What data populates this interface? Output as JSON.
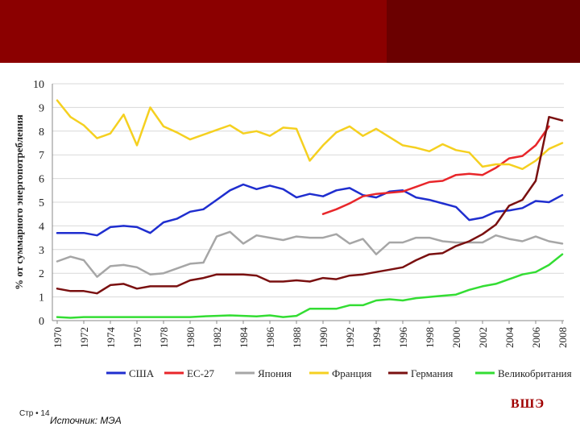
{
  "footer": {
    "page_label": "Стр • 14",
    "source": "Источник: МЭА"
  },
  "logo_text": "ВШЭ",
  "colors": {
    "banner": "#8b0000",
    "logo": "#a00000"
  },
  "chart_data": {
    "type": "line",
    "title": "",
    "xlabel": "",
    "ylabel": "% от суммарного энергопотребления",
    "ylim": [
      0,
      10
    ],
    "xlim": [
      1970,
      2008
    ],
    "yticks": [
      0,
      1,
      2,
      3,
      4,
      5,
      6,
      7,
      8,
      9,
      10
    ],
    "xticks": [
      1970,
      1972,
      1974,
      1976,
      1978,
      1980,
      1982,
      1984,
      1986,
      1988,
      1990,
      1992,
      1994,
      1996,
      1998,
      2000,
      2002,
      2004,
      2006,
      2008
    ],
    "legend_position": "bottom",
    "series": [
      {
        "name": "США",
        "color": "#1f2ecf",
        "x": [
          1970,
          1971,
          1972,
          1973,
          1974,
          1975,
          1976,
          1977,
          1978,
          1979,
          1980,
          1981,
          1982,
          1983,
          1984,
          1985,
          1986,
          1987,
          1988,
          1989,
          1990,
          1991,
          1992,
          1993,
          1994,
          1995,
          1996,
          1997,
          1998,
          1999,
          2000,
          2001,
          2002,
          2003,
          2004,
          2005,
          2006,
          2007,
          2008
        ],
        "y": [
          3.7,
          3.7,
          3.7,
          3.6,
          3.95,
          4.0,
          3.95,
          3.7,
          4.15,
          4.3,
          4.6,
          4.7,
          5.1,
          5.5,
          5.75,
          5.55,
          5.7,
          5.55,
          5.2,
          5.35,
          5.25,
          5.5,
          5.6,
          5.3,
          5.2,
          5.45,
          5.5,
          5.2,
          5.1,
          4.95,
          4.8,
          4.25,
          4.35,
          4.6,
          4.65,
          4.75,
          5.05,
          5.0,
          5.3
        ]
      },
      {
        "name": "ЕС-27",
        "color": "#e8262a",
        "x": [
          1990,
          1991,
          1992,
          1993,
          1994,
          1995,
          1996,
          1997,
          1998,
          1999,
          2000,
          2001,
          2002,
          2003,
          2004,
          2005,
          2006,
          2007
        ],
        "y": [
          4.5,
          4.7,
          4.95,
          5.25,
          5.35,
          5.4,
          5.45,
          5.65,
          5.85,
          5.9,
          6.15,
          6.2,
          6.15,
          6.45,
          6.85,
          6.95,
          7.4,
          8.2
        ]
      },
      {
        "name": "Япония",
        "color": "#a6a6a6",
        "x": [
          1970,
          1971,
          1972,
          1973,
          1974,
          1975,
          1976,
          1977,
          1978,
          1979,
          1980,
          1981,
          1982,
          1983,
          1984,
          1985,
          1986,
          1987,
          1988,
          1989,
          1990,
          1991,
          1992,
          1993,
          1994,
          1995,
          1996,
          1997,
          1998,
          1999,
          2000,
          2001,
          2002,
          2003,
          2004,
          2005,
          2006,
          2007,
          2008
        ],
        "y": [
          2.5,
          2.7,
          2.55,
          1.85,
          2.3,
          2.35,
          2.25,
          1.95,
          2.0,
          2.2,
          2.4,
          2.45,
          3.55,
          3.75,
          3.25,
          3.6,
          3.5,
          3.4,
          3.55,
          3.5,
          3.5,
          3.65,
          3.25,
          3.45,
          2.8,
          3.3,
          3.3,
          3.5,
          3.5,
          3.35,
          3.3,
          3.3,
          3.3,
          3.6,
          3.45,
          3.35,
          3.55,
          3.35,
          3.25
        ]
      },
      {
        "name": "Франция",
        "color": "#f5d020",
        "x": [
          1970,
          1971,
          1972,
          1973,
          1974,
          1975,
          1976,
          1977,
          1978,
          1979,
          1980,
          1981,
          1982,
          1983,
          1984,
          1985,
          1986,
          1987,
          1988,
          1989,
          1990,
          1991,
          1992,
          1993,
          1994,
          1995,
          1996,
          1997,
          1998,
          1999,
          2000,
          2001,
          2002,
          2003,
          2004,
          2005,
          2006,
          2007,
          2008
        ],
        "y": [
          9.3,
          8.6,
          8.25,
          7.7,
          7.9,
          8.7,
          7.4,
          9.0,
          8.2,
          7.95,
          7.65,
          7.85,
          8.05,
          8.25,
          7.9,
          8.0,
          7.8,
          8.15,
          8.1,
          6.75,
          7.4,
          7.95,
          8.2,
          7.8,
          8.1,
          7.75,
          7.4,
          7.3,
          7.15,
          7.45,
          7.2,
          7.1,
          6.5,
          6.6,
          6.6,
          6.4,
          6.75,
          7.25,
          7.5
        ]
      },
      {
        "name": "Германия",
        "color": "#7a1010",
        "x": [
          1970,
          1971,
          1972,
          1973,
          1974,
          1975,
          1976,
          1977,
          1978,
          1979,
          1980,
          1981,
          1982,
          1983,
          1984,
          1985,
          1986,
          1987,
          1988,
          1989,
          1990,
          1991,
          1992,
          1993,
          1994,
          1995,
          1996,
          1997,
          1998,
          1999,
          2000,
          2001,
          2002,
          2003,
          2004,
          2005,
          2006,
          2007,
          2008
        ],
        "y": [
          1.35,
          1.25,
          1.25,
          1.15,
          1.5,
          1.55,
          1.35,
          1.45,
          1.45,
          1.45,
          1.7,
          1.8,
          1.95,
          1.95,
          1.95,
          1.9,
          1.65,
          1.65,
          1.7,
          1.65,
          1.8,
          1.75,
          1.9,
          1.95,
          2.05,
          2.15,
          2.25,
          2.55,
          2.8,
          2.85,
          3.15,
          3.35,
          3.65,
          4.05,
          4.85,
          5.1,
          5.9,
          8.6,
          8.45
        ]
      },
      {
        "name": "Великобритания",
        "color": "#33dd33",
        "x": [
          1970,
          1971,
          1972,
          1973,
          1974,
          1975,
          1976,
          1977,
          1978,
          1979,
          1980,
          1981,
          1982,
          1983,
          1984,
          1985,
          1986,
          1987,
          1988,
          1989,
          1990,
          1991,
          1992,
          1993,
          1994,
          1995,
          1996,
          1997,
          1998,
          1999,
          2000,
          2001,
          2002,
          2003,
          2004,
          2005,
          2006,
          2007,
          2008
        ],
        "y": [
          0.15,
          0.12,
          0.15,
          0.15,
          0.15,
          0.15,
          0.15,
          0.15,
          0.15,
          0.15,
          0.15,
          0.18,
          0.2,
          0.22,
          0.2,
          0.18,
          0.22,
          0.15,
          0.2,
          0.5,
          0.5,
          0.5,
          0.65,
          0.65,
          0.85,
          0.9,
          0.85,
          0.95,
          1.0,
          1.05,
          1.1,
          1.3,
          1.45,
          1.55,
          1.75,
          1.95,
          2.05,
          2.35,
          2.8
        ]
      }
    ]
  }
}
